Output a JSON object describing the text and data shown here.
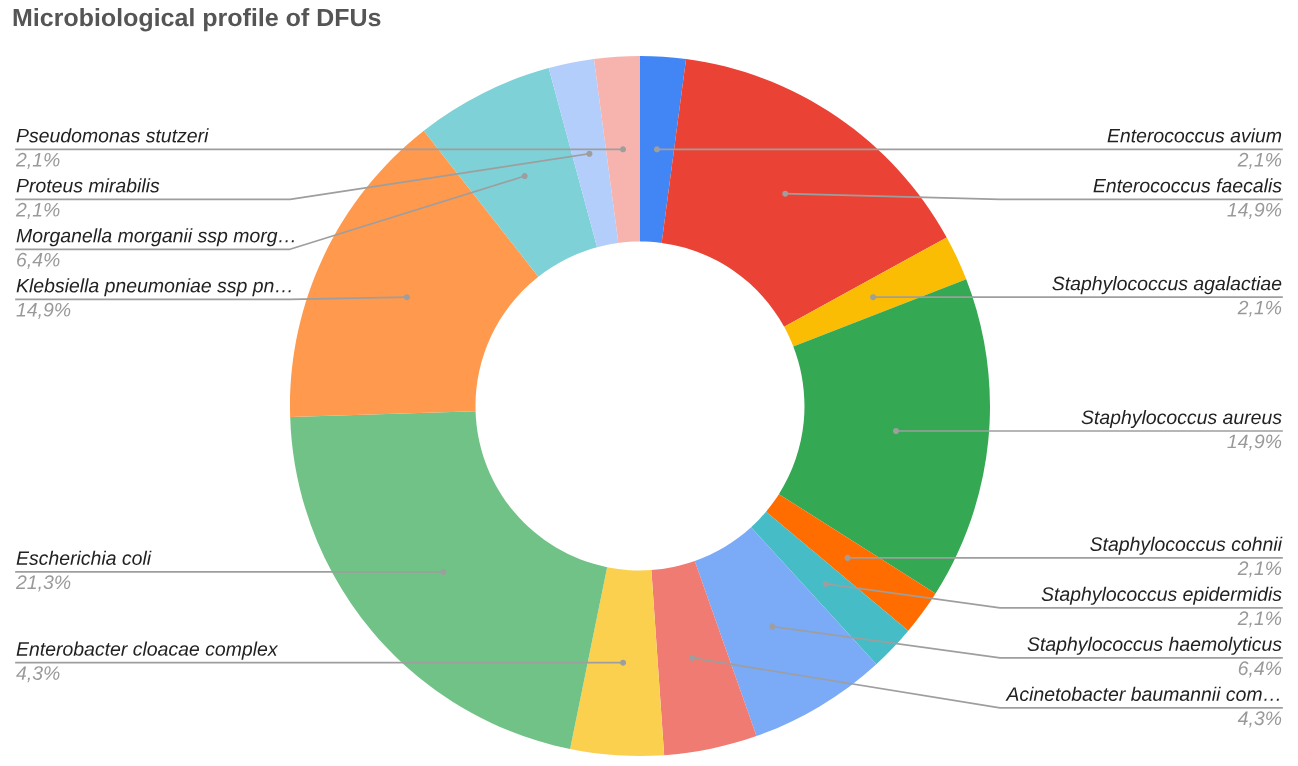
{
  "chart_data": {
    "type": "donut",
    "title": "Microbiological profile of DFUs",
    "categories": [
      "Enterococcus avium",
      "Enterococcus faecalis",
      "Staphylococcus agalactiae",
      "Staphylococcus aureus",
      "Staphylococcus cohnii",
      "Staphylococcus epidermidis",
      "Staphylococcus haemolyticus",
      "Acinetobacter baumannii com…",
      "Enterobacter cloacae complex",
      "Escherichia coli",
      "Klebsiella pneumoniae ssp pn…",
      "Morganella morganii ssp morg…",
      "Proteus mirabilis",
      "Pseudomonas stutzeri"
    ],
    "values": [
      2.1,
      14.9,
      2.1,
      14.9,
      2.1,
      2.1,
      6.4,
      4.3,
      4.3,
      21.3,
      14.9,
      6.4,
      2.1,
      2.1
    ],
    "value_labels": [
      "2,1%",
      "14,9%",
      "2,1%",
      "14,9%",
      "2,1%",
      "2,1%",
      "6,4%",
      "4,3%",
      "4,3%",
      "21,3%",
      "14,9%",
      "6,4%",
      "2,1%",
      "2,1%"
    ],
    "colors": [
      "#4285f4",
      "#ea4335",
      "#fbbc04",
      "#34a853",
      "#ff6d01",
      "#46bdc6",
      "#7baaf7",
      "#f07b72",
      "#fcd04f",
      "#71c287",
      "#ff994d",
      "#7ed1d7",
      "#b3cefb",
      "#f7b4ae"
    ]
  }
}
